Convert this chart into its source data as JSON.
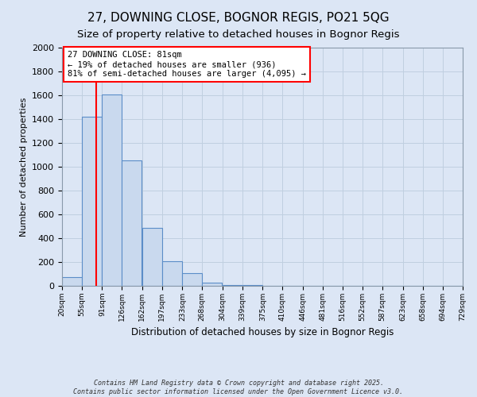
{
  "title": "27, DOWNING CLOSE, BOGNOR REGIS, PO21 5QG",
  "subtitle": "Size of property relative to detached houses in Bognor Regis",
  "xlabel": "Distribution of detached houses by size in Bognor Regis",
  "ylabel": "Number of detached properties",
  "bin_labels": [
    "20sqm",
    "55sqm",
    "91sqm",
    "126sqm",
    "162sqm",
    "197sqm",
    "233sqm",
    "268sqm",
    "304sqm",
    "339sqm",
    "375sqm",
    "410sqm",
    "446sqm",
    "481sqm",
    "516sqm",
    "552sqm",
    "587sqm",
    "623sqm",
    "658sqm",
    "694sqm",
    "729sqm"
  ],
  "bin_lefts": [
    20,
    55,
    91,
    126,
    162,
    197,
    233,
    268,
    304,
    339,
    375,
    410,
    446,
    481,
    516,
    552,
    587,
    623,
    658,
    694
  ],
  "values": [
    75,
    1420,
    1610,
    1055,
    490,
    205,
    105,
    28,
    10,
    5,
    2,
    1,
    0,
    0,
    0,
    0,
    0,
    0,
    0,
    1
  ],
  "bar_color": "#c9d9ee",
  "bar_edge_color": "#5b8dc8",
  "vline_x": 81,
  "vline_color": "red",
  "annotation_text": "27 DOWNING CLOSE: 81sqm\n← 19% of detached houses are smaller (936)\n81% of semi-detached houses are larger (4,095) →",
  "annotation_box_color": "white",
  "annotation_box_edge_color": "red",
  "ylim": [
    0,
    2000
  ],
  "yticks": [
    0,
    200,
    400,
    600,
    800,
    1000,
    1200,
    1400,
    1600,
    1800,
    2000
  ],
  "background_color": "#dce6f5",
  "grid_color": "#c0cfe0",
  "footer_line1": "Contains HM Land Registry data © Crown copyright and database right 2025.",
  "footer_line2": "Contains public sector information licensed under the Open Government Licence v3.0.",
  "title_fontsize": 11,
  "subtitle_fontsize": 9.5
}
